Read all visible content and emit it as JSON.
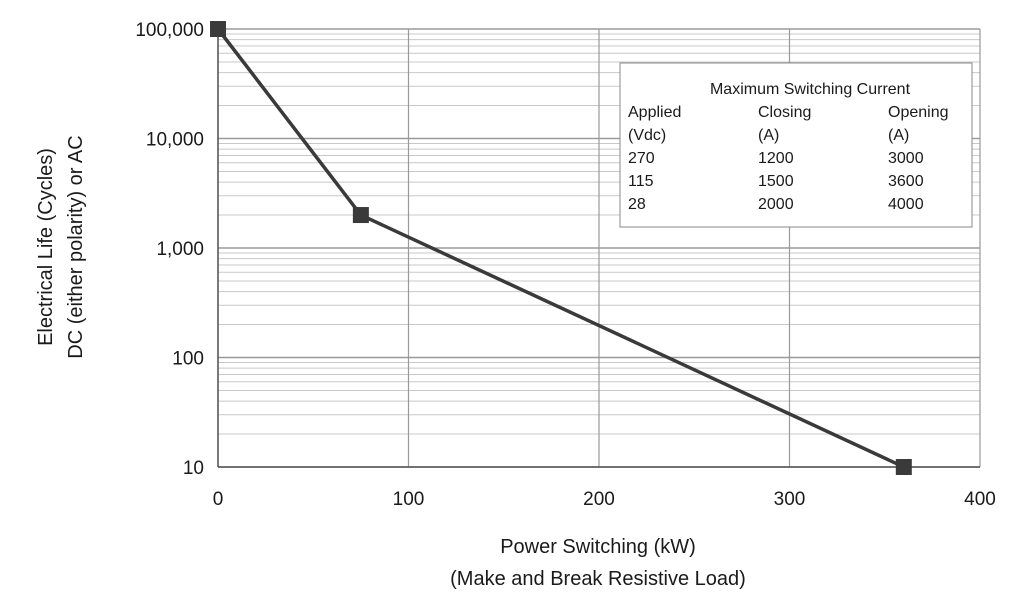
{
  "chart_data": {
    "type": "line",
    "xlabel": "Power Switching (kW)",
    "xlabel_sub": "(Make and Break Resistive Load)",
    "ylabel": "Electrical Life (Cycles)",
    "ylabel_sub": "DC (either polarity) or AC",
    "xlim": [
      0,
      400
    ],
    "ylim": [
      10,
      100000
    ],
    "yscale": "log",
    "grid": true,
    "x_ticks": [
      {
        "value": 0,
        "label": "0"
      },
      {
        "value": 100,
        "label": "100"
      },
      {
        "value": 200,
        "label": "200"
      },
      {
        "value": 300,
        "label": "300"
      },
      {
        "value": 400,
        "label": "400"
      }
    ],
    "y_ticks": [
      {
        "value": 10,
        "label": "10"
      },
      {
        "value": 100,
        "label": "100"
      },
      {
        "value": 1000,
        "label": "1,000"
      },
      {
        "value": 10000,
        "label": "10,000"
      },
      {
        "value": 100000,
        "label": "100,000"
      }
    ],
    "series": [
      {
        "x": [
          0,
          75,
          360
        ],
        "y": [
          100000,
          2000,
          10
        ],
        "color": "#3a3a3a",
        "marker": "square"
      }
    ],
    "table": {
      "title": "Maximum Switching Current",
      "headers": [
        [
          "Applied",
          "Closing",
          "Opening"
        ],
        [
          "(Vdc)",
          "(A)",
          "(A)"
        ]
      ],
      "rows": [
        [
          "270",
          "1200",
          "3000"
        ],
        [
          "115",
          "1500",
          "3600"
        ],
        [
          "28",
          "2000",
          "4000"
        ]
      ],
      "placement": "top-right"
    }
  }
}
